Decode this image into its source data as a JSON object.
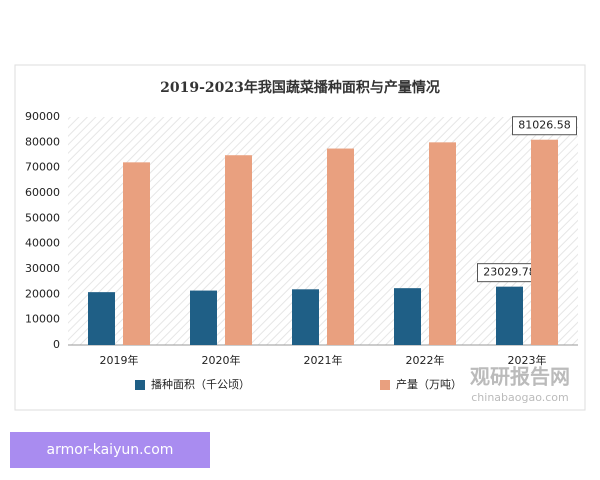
{
  "chart_data": {
    "type": "bar",
    "title": "2019-2023年我国蔬菜播种面积与产量情况",
    "categories": [
      "2019年",
      "2020年",
      "2021年",
      "2022年",
      "2023年"
    ],
    "series": [
      {
        "name": "播种面积（千公顷）",
        "color": "#1f5f86",
        "values": [
          20863,
          21485,
          21986,
          22434,
          23029.78
        ],
        "value_labels": [
          null,
          null,
          null,
          null,
          "23029.78"
        ]
      },
      {
        "name": "产量（万吨）",
        "color": "#e9a07f",
        "values": [
          72103,
          74913,
          77549,
          79997,
          81026.58
        ],
        "value_labels": [
          null,
          null,
          null,
          null,
          "81026.58"
        ]
      }
    ],
    "ylim": [
      0,
      90000
    ],
    "yticks": [
      0,
      10000,
      20000,
      30000,
      40000,
      50000,
      60000,
      70000,
      80000,
      90000
    ],
    "grid": false,
    "legend": "bottom"
  },
  "watermark": {
    "name": "观研报告网",
    "url": "chinabaogao.com"
  },
  "badge": "armor-kaiyun.com"
}
